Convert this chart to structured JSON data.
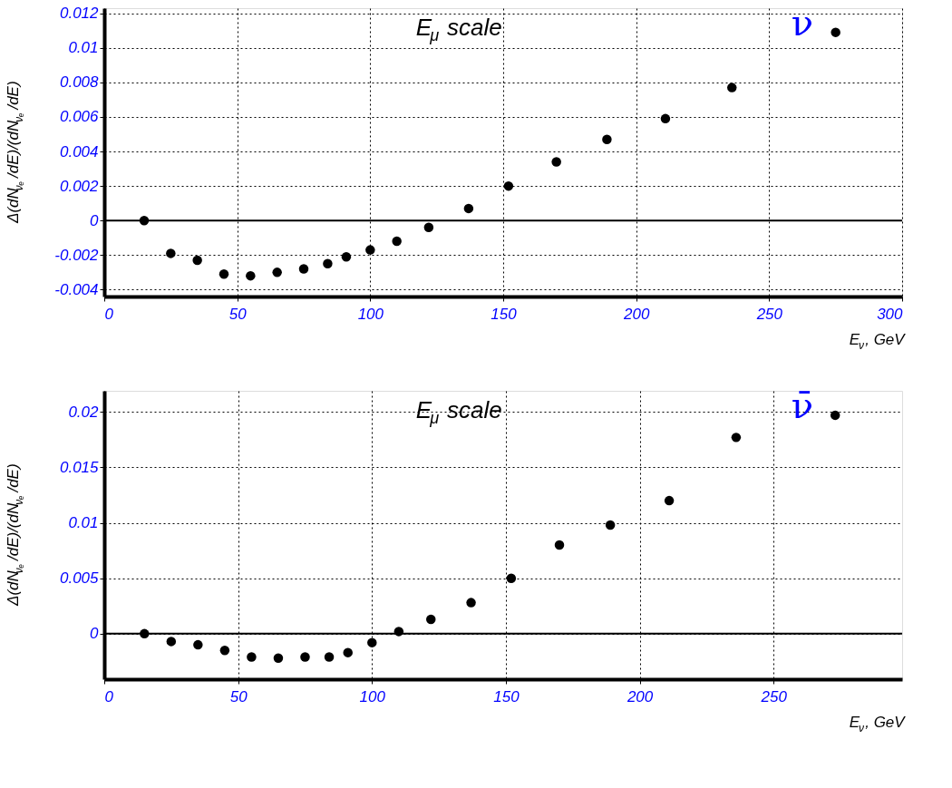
{
  "chart_data": [
    {
      "type": "scatter",
      "title": "E$_{μ}$ scale",
      "xlabel": "E$_{ν}$, GeV",
      "ylabel": "Δ(dN$_{νₑ}$/dE)/(dN$_{νₑ}$/dE)",
      "x": [
        15,
        25,
        35,
        45,
        55,
        65,
        75,
        84,
        91,
        100,
        110,
        122,
        137,
        152,
        170,
        189,
        211,
        236,
        275
      ],
      "series": [
        {
          "color": "#000000",
          "values": [
            0,
            -0.0019,
            -0.0023,
            -0.0031,
            -0.0032,
            -0.003,
            -0.0028,
            -0.0025,
            -0.0021,
            -0.0017,
            -0.0012,
            -0.0004,
            0.0007,
            0.002,
            0.0034,
            0.0047,
            0.0059,
            0.0077,
            0.0109
          ]
        }
      ],
      "annotations": [
        "ν"
      ],
      "xlim": [
        0,
        300
      ],
      "xticks": [
        0,
        50,
        100,
        150,
        200,
        250,
        300
      ],
      "ylim": [
        -0.0044,
        0.0123
      ],
      "yticks": [
        -0.004,
        -0.002,
        0,
        0.002,
        0.004,
        0.006,
        0.008,
        0.01,
        0.012
      ],
      "ref_lines": [
        {
          "axis": "y",
          "value": 0,
          "color": "#000000"
        }
      ],
      "grid": true,
      "marker": "circle",
      "legend": false
    },
    {
      "type": "scatter",
      "title": "E$_{μ}$ scale",
      "xlabel": "E$_{ν}$, GeV",
      "ylabel": "Δ(dN$_{νₑ}$/dE)/(dN$_{νₑ}$/dE)",
      "x": [
        15,
        25,
        35,
        45,
        55,
        65,
        75,
        84,
        91,
        100,
        110,
        122,
        137,
        152,
        170,
        189,
        211,
        236,
        273
      ],
      "series": [
        {
          "color": "#000000",
          "values": [
            0,
            -0.0007,
            -0.001,
            -0.0015,
            -0.0021,
            -0.0022,
            -0.0021,
            -0.0021,
            -0.0017,
            -0.0008,
            0.0002,
            0.0013,
            0.0028,
            0.005,
            0.008,
            0.0098,
            0.012,
            0.0177,
            0.0197
          ]
        }
      ],
      "annotations": [
        "ν̄"
      ],
      "xlim": [
        0,
        298
      ],
      "xticks": [
        0,
        50,
        100,
        150,
        200,
        250
      ],
      "ylim": [
        -0.0041,
        0.0219
      ],
      "yticks": [
        0,
        0.005,
        0.01,
        0.015,
        0.02
      ],
      "ref_lines": [
        {
          "axis": "y",
          "value": 0,
          "color": "#000000"
        }
      ],
      "grid": true,
      "marker": "circle",
      "legend": false
    }
  ]
}
